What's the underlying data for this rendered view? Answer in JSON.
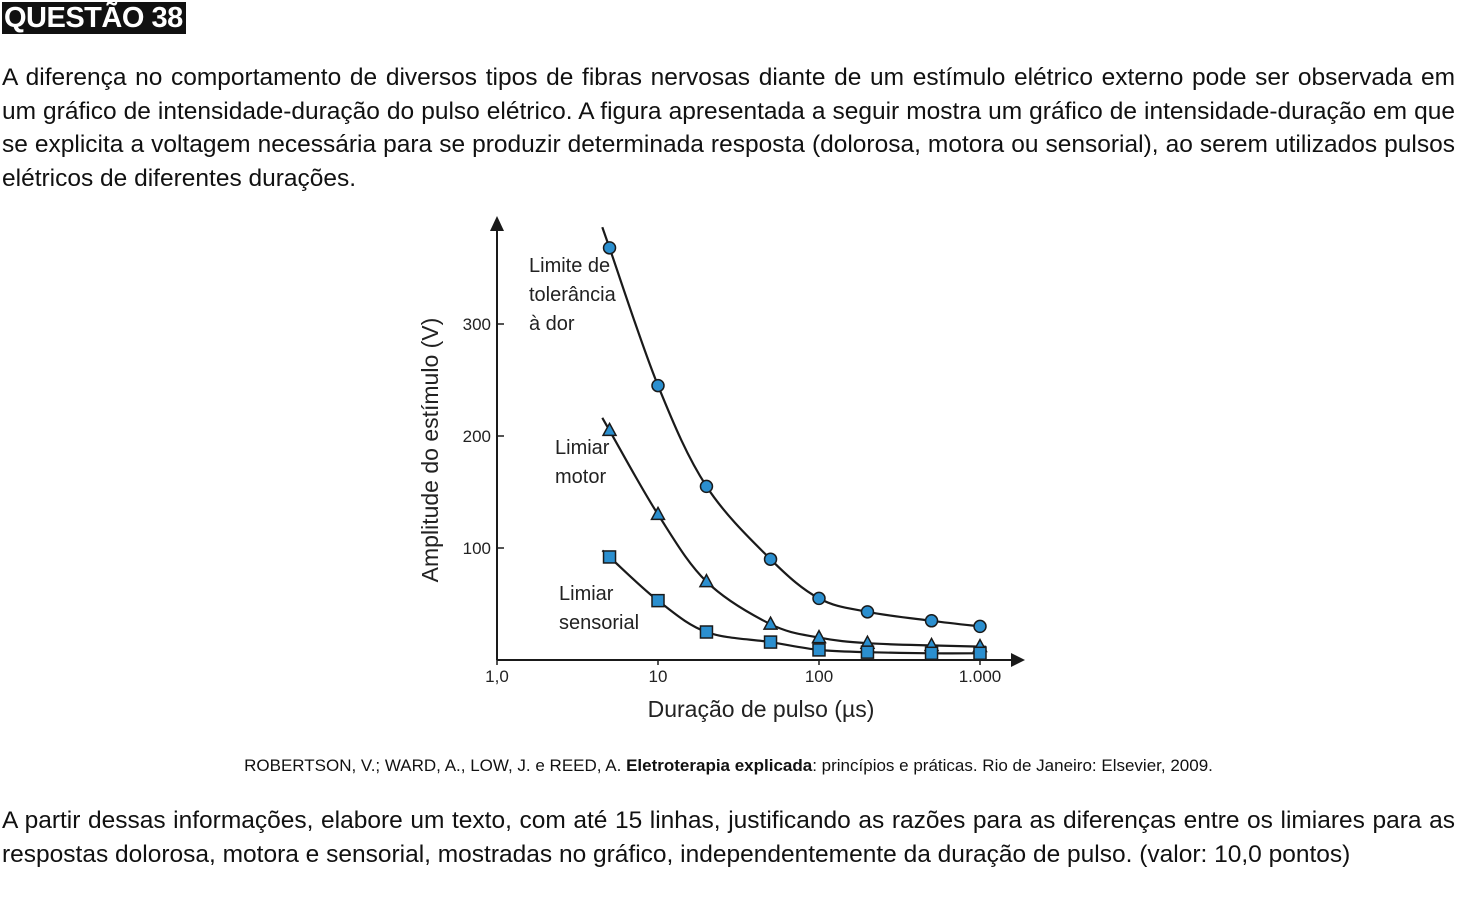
{
  "heading": "QUESTÃO 38",
  "intro": "A diferença no comportamento de diversos tipos de fibras nervosas diante de um estímulo elétrico externo pode ser observada em um gráfico de intensidade-duração do pulso elétrico. A figura apresentada a seguir mostra um gráfico de intensidade-duração em que se explicita a voltagem necessária para se produzir determinada resposta (dolorosa, motora ou sensorial), ao serem utilizados pulsos elétricos de diferentes durações.",
  "citation": {
    "before": "ROBERTSON, V.; WARD, A., LOW, J. e REED, A. ",
    "title": "Eletroterapia explicada",
    "after": ": princípios e práticas. Rio de Janeiro: Elsevier, 2009."
  },
  "prompt": "A partir dessas informações, elabore um texto, com até 15 linhas, justificando as razões para as diferenças entre os limiares para as respostas dolorosa, motora e sensorial, mostradas no gráfico, independentemente da duração de pulso. (valor: 10,0 pontos)",
  "colors": {
    "marker_fill": "#2b8fcf",
    "line": "#1a1a1a"
  },
  "chart_data": {
    "type": "line",
    "xlabel": "Duração de pulso (µs)",
    "ylabel": "Amplitude do estímulo (V)",
    "x_scale": "log",
    "xlim": [
      1,
      1000
    ],
    "ylim": [
      0,
      370
    ],
    "x_ticks": [
      {
        "value": 1,
        "label": "1,0"
      },
      {
        "value": 10,
        "label": "10"
      },
      {
        "value": 100,
        "label": "100"
      },
      {
        "value": 1000,
        "label": "1.000"
      }
    ],
    "y_ticks": [
      {
        "value": 100,
        "label": "100"
      },
      {
        "value": 200,
        "label": "200"
      },
      {
        "value": 300,
        "label": "300"
      }
    ],
    "grid": false,
    "series": [
      {
        "name": "Limite de tolerância à dor",
        "label_lines": [
          "Limite de",
          "tolerância",
          "à dor"
        ],
        "marker": "circle",
        "x": [
          5,
          10,
          20,
          50,
          100,
          200,
          500,
          1000
        ],
        "y": [
          368,
          245,
          155,
          90,
          55,
          43,
          35,
          30
        ]
      },
      {
        "name": "Limiar motor",
        "label_lines": [
          "Limiar",
          "motor"
        ],
        "marker": "triangle",
        "x": [
          5,
          10,
          20,
          50,
          100,
          200,
          500,
          1000
        ],
        "y": [
          205,
          130,
          70,
          32,
          20,
          15,
          13,
          12
        ]
      },
      {
        "name": "Limiar sensorial",
        "label_lines": [
          "Limiar",
          "sensorial"
        ],
        "marker": "square",
        "x": [
          5,
          10,
          20,
          50,
          100,
          200,
          500,
          1000
        ],
        "y": [
          92,
          53,
          25,
          16,
          9,
          7,
          6,
          6
        ]
      }
    ]
  }
}
